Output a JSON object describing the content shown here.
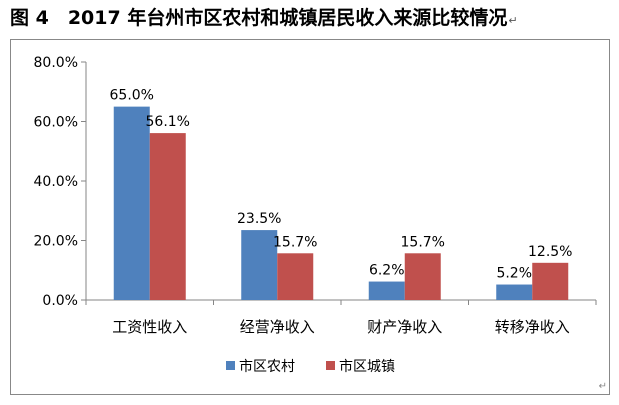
{
  "figure": {
    "title": "图 4　2017 年台州市区农村和城镇居民收入来源比较情况",
    "paragraph_mark": "↵",
    "corner_mark": "↵"
  },
  "chart_data": {
    "type": "bar",
    "categories": [
      "工资性收入",
      "经营净收入",
      "财产净收入",
      "转移净收入"
    ],
    "series": [
      {
        "name": "市区农村",
        "values": [
          65.0,
          23.5,
          6.2,
          5.2
        ],
        "labels": [
          "65.0%",
          "23.5%",
          "6.2%",
          "5.2%"
        ],
        "color": "#4F81BD"
      },
      {
        "name": "市区城镇",
        "values": [
          56.1,
          15.7,
          15.7,
          12.5
        ],
        "labels": [
          "56.1%",
          "15.7%",
          "15.7%",
          "12.5%"
        ],
        "color": "#C0504D"
      }
    ],
    "ylim": [
      0,
      80
    ],
    "yticks": [
      0,
      20,
      40,
      60,
      80
    ],
    "ytick_labels": [
      "0.0%",
      "20.0%",
      "40.0%",
      "60.0%",
      "80.0%"
    ],
    "grid": false,
    "legend": "bottom"
  }
}
